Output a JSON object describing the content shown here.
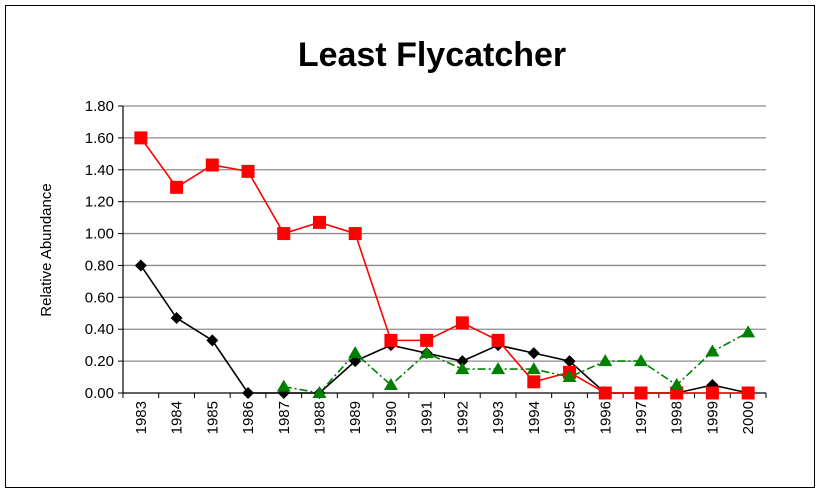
{
  "chart_data": {
    "type": "line",
    "title": "Least Flycatcher",
    "ylabel": "Relative Abundance",
    "xlabel": "",
    "ylim": [
      0,
      1.8
    ],
    "ytick_step": 0.2,
    "grid": true,
    "categories": [
      "1983",
      "1984",
      "1985",
      "1986",
      "1987",
      "1988",
      "1989",
      "1990",
      "1991",
      "1992",
      "1993",
      "1994",
      "1995",
      "1996",
      "1997",
      "1998",
      "1999",
      "2000"
    ],
    "series": [
      {
        "color": "#000000",
        "marker": "diamond",
        "dash": "solid",
        "values": [
          0.8,
          0.47,
          0.33,
          0.0,
          0.0,
          0.0,
          0.2,
          0.3,
          0.25,
          0.2,
          0.3,
          0.25,
          0.2,
          0.0,
          0.0,
          0.0,
          0.05,
          0.0
        ]
      },
      {
        "color": "#ff0000",
        "marker": "square",
        "dash": "solid",
        "values": [
          1.6,
          1.29,
          1.43,
          1.39,
          1.0,
          1.07,
          1.0,
          0.33,
          0.33,
          0.44,
          0.33,
          0.07,
          0.13,
          0.0,
          0.0,
          0.0,
          0.0,
          0.0
        ]
      },
      {
        "color": "#008000",
        "marker": "triangle",
        "dash": "dashdot",
        "values": [
          null,
          null,
          null,
          null,
          0.04,
          0.0,
          0.25,
          0.05,
          0.25,
          0.15,
          0.15,
          0.15,
          0.1,
          0.2,
          0.2,
          0.05,
          0.26,
          0.38
        ]
      }
    ]
  }
}
